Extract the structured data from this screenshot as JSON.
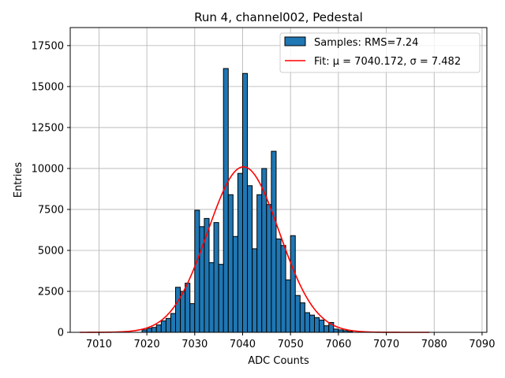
{
  "chart_data": {
    "type": "bar",
    "title": "Run 4, channel002, Pedestal",
    "xlabel": "ADC Counts",
    "ylabel": "Entries",
    "xlim": [
      7004,
      7091
    ],
    "ylim": [
      0,
      18600
    ],
    "xticks": [
      7010,
      7020,
      7030,
      7040,
      7050,
      7060,
      7070,
      7080,
      7090
    ],
    "xtick_labels": [
      "7010",
      "7020",
      "7030",
      "7040",
      "7050",
      "7060",
      "7070",
      "7080",
      "7090"
    ],
    "yticks": [
      0,
      2500,
      5000,
      7500,
      10000,
      12500,
      15000,
      17500
    ],
    "ytick_labels": [
      "0",
      "2500",
      "5000",
      "7500",
      "10000",
      "12500",
      "15000",
      "17500"
    ],
    "grid": true,
    "legend_position": "top-right",
    "colors": {
      "bars": "#1f77b4",
      "bar_edge": "#000000",
      "fit": "#ff0000",
      "grid": "#b0b0b0"
    },
    "histogram": {
      "name": "Samples: RMS=7.24",
      "bin_width": 1,
      "bin_starts": [
        7019,
        7020,
        7021,
        7022,
        7023,
        7024,
        7025,
        7026,
        7027,
        7028,
        7029,
        7030,
        7031,
        7032,
        7033,
        7034,
        7035,
        7036,
        7037,
        7038,
        7039,
        7040,
        7041,
        7042,
        7043,
        7044,
        7045,
        7046,
        7047,
        7048,
        7049,
        7050,
        7051,
        7052,
        7053,
        7054,
        7055,
        7056,
        7057,
        7058,
        7059,
        7060,
        7061,
        7062
      ],
      "values": [
        150,
        250,
        300,
        450,
        700,
        850,
        1150,
        2750,
        2500,
        3000,
        1750,
        7450,
        6450,
        6950,
        4250,
        6700,
        4150,
        16100,
        8400,
        5850,
        9700,
        15800,
        8950,
        5100,
        8400,
        10000,
        7800,
        11050,
        5700,
        5300,
        3200,
        5900,
        2250,
        1800,
        1200,
        1050,
        900,
        750,
        400,
        600,
        200,
        150,
        100,
        50
      ]
    },
    "fit": {
      "name": "Fit: μ = 7040.172, σ = 7.482",
      "mu": 7040.172,
      "sigma": 7.482,
      "amplitude": 10100,
      "x_range": [
        7006,
        7079
      ]
    }
  }
}
